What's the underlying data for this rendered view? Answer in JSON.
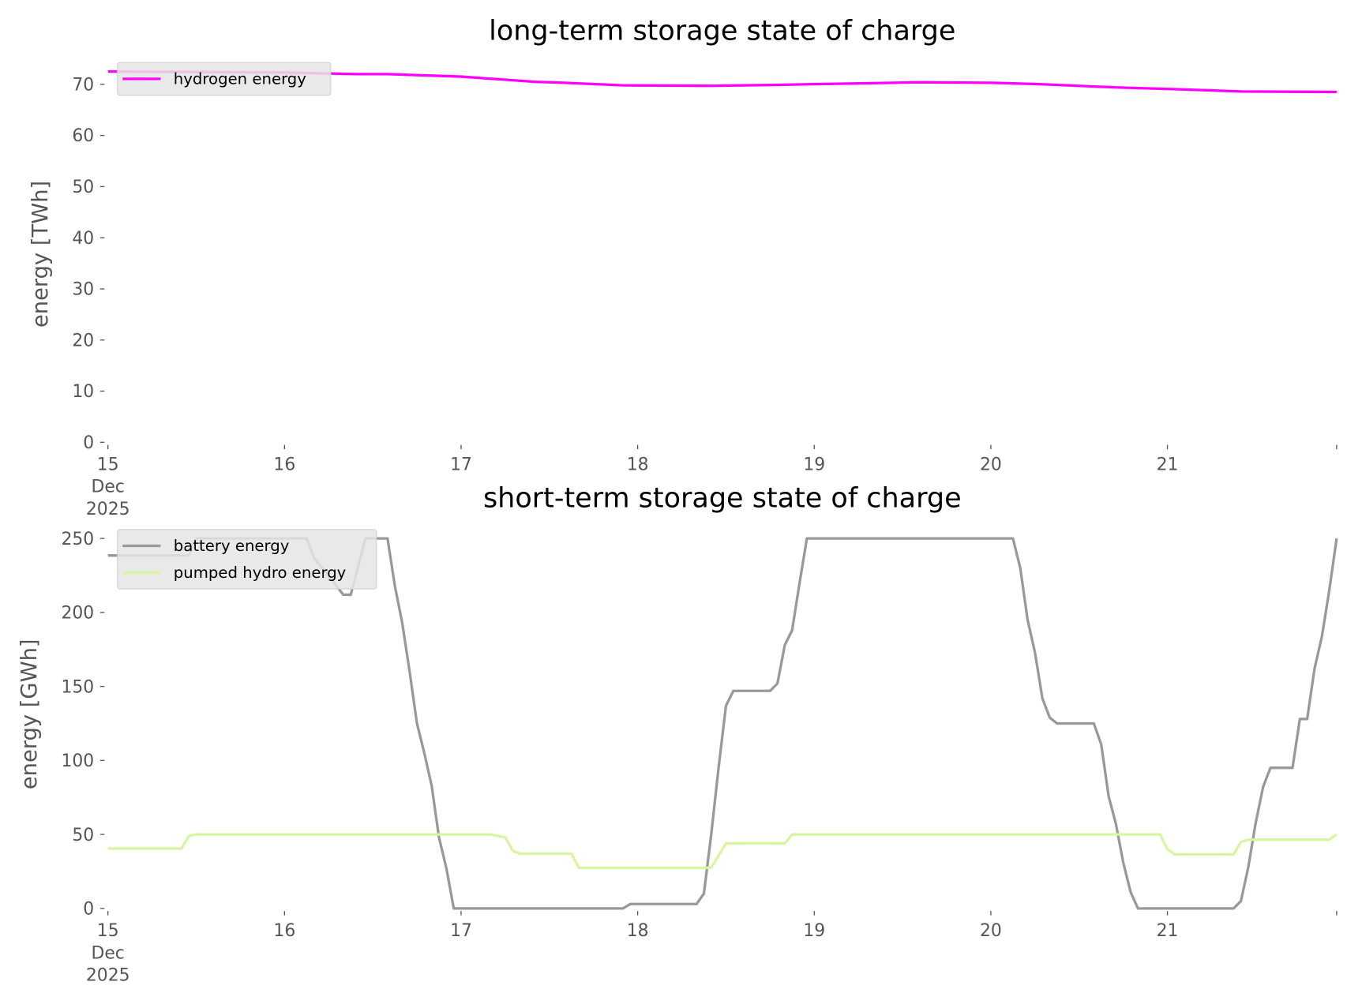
{
  "chart_data": [
    {
      "type": "line",
      "title": "long-term storage state of charge",
      "ylabel": "energy [TWh]",
      "xlabel": "",
      "ylim": [
        0,
        73.6
      ],
      "xlim": [
        "2025-12-15T00:00",
        "2025-12-21T23:00"
      ],
      "yticks": [
        "0",
        "10",
        "20",
        "30",
        "40",
        "50",
        "60",
        "70"
      ],
      "xticks": [
        "15\nDec\n2025",
        "16",
        "17",
        "18",
        "19",
        "20",
        "21"
      ],
      "grid": false,
      "legend": "top-left",
      "series": [
        {
          "name": "hydrogen energy",
          "color": "#ff00ff",
          "points": [
            [
              "2025-12-15T00:00",
              72.5
            ],
            [
              "2025-12-16T00:00",
              72.3
            ],
            [
              "2025-12-16T10:00",
              72.0
            ],
            [
              "2025-12-16T14:00",
              72.0
            ],
            [
              "2025-12-17T00:00",
              71.5
            ],
            [
              "2025-12-17T10:00",
              70.5
            ],
            [
              "2025-12-17T14:00",
              70.3
            ],
            [
              "2025-12-17T22:00",
              69.8
            ],
            [
              "2025-12-18T10:00",
              69.7
            ],
            [
              "2025-12-18T19:00",
              69.9
            ],
            [
              "2025-12-19T07:00",
              70.2
            ],
            [
              "2025-12-19T14:00",
              70.4
            ],
            [
              "2025-12-20T00:00",
              70.3
            ],
            [
              "2025-12-20T07:00",
              70.0
            ],
            [
              "2025-12-20T17:00",
              69.4
            ],
            [
              "2025-12-21T02:00",
              69.0
            ],
            [
              "2025-12-21T10:00",
              68.6
            ],
            [
              "2025-12-21T23:00",
              68.5
            ]
          ]
        }
      ]
    },
    {
      "type": "line",
      "title": "short-term storage state of charge",
      "ylabel": "energy [GWh]",
      "xlabel": "",
      "ylim": [
        0,
        262.5
      ],
      "xlim": [
        "2025-12-15T00:00",
        "2025-12-21T23:00"
      ],
      "yticks": [
        "0",
        "50",
        "100",
        "150",
        "200",
        "250"
      ],
      "xticks": [
        "15\nDec\n2025",
        "16",
        "17",
        "18",
        "19",
        "20",
        "21"
      ],
      "grid": false,
      "legend": "top-left",
      "series": [
        {
          "name": "battery energy",
          "color": "#999999",
          "points": [
            [
              "2025-12-15T00:00",
              238.5
            ],
            [
              "2025-12-15T11:00",
              238.5
            ],
            [
              "2025-12-15T12:00",
              250
            ],
            [
              "2025-12-16T03:00",
              250
            ],
            [
              "2025-12-16T04:00",
              237
            ],
            [
              "2025-12-16T08:00",
              212
            ],
            [
              "2025-12-16T09:00",
              212
            ],
            [
              "2025-12-16T11:00",
              250
            ],
            [
              "2025-12-16T14:00",
              250
            ],
            [
              "2025-12-16T15:00",
              218
            ],
            [
              "2025-12-16T16:00",
              193
            ],
            [
              "2025-12-16T17:00",
              160
            ],
            [
              "2025-12-16T18:00",
              125
            ],
            [
              "2025-12-16T19:00",
              105
            ],
            [
              "2025-12-16T20:00",
              83
            ],
            [
              "2025-12-16T21:00",
              48
            ],
            [
              "2025-12-16T22:00",
              27
            ],
            [
              "2025-12-16T23:00",
              0
            ],
            [
              "2025-12-17T22:00",
              0
            ],
            [
              "2025-12-17T23:00",
              3
            ],
            [
              "2025-12-18T08:00",
              3
            ],
            [
              "2025-12-18T09:00",
              10
            ],
            [
              "2025-12-18T10:00",
              50
            ],
            [
              "2025-12-18T11:00",
              95
            ],
            [
              "2025-12-18T12:00",
              137
            ],
            [
              "2025-12-18T13:00",
              147
            ],
            [
              "2025-12-18T18:00",
              147
            ],
            [
              "2025-12-18T19:00",
              152
            ],
            [
              "2025-12-18T20:00",
              178
            ],
            [
              "2025-12-18T21:00",
              188
            ],
            [
              "2025-12-18T22:00",
              220
            ],
            [
              "2025-12-18T23:00",
              250
            ],
            [
              "2025-12-20T03:00",
              250
            ],
            [
              "2025-12-20T04:00",
              230
            ],
            [
              "2025-12-20T05:00",
              195
            ],
            [
              "2025-12-20T06:00",
              173
            ],
            [
              "2025-12-20T07:00",
              142
            ],
            [
              "2025-12-20T08:00",
              129
            ],
            [
              "2025-12-20T09:00",
              125
            ],
            [
              "2025-12-20T14:00",
              125
            ],
            [
              "2025-12-20T15:00",
              111
            ],
            [
              "2025-12-20T16:00",
              76
            ],
            [
              "2025-12-20T17:00",
              57
            ],
            [
              "2025-12-20T18:00",
              31
            ],
            [
              "2025-12-20T19:00",
              11
            ],
            [
              "2025-12-20T20:00",
              0
            ],
            [
              "2025-12-21T09:00",
              0
            ],
            [
              "2025-12-21T10:00",
              5
            ],
            [
              "2025-12-21T11:00",
              28
            ],
            [
              "2025-12-21T12:00",
              58
            ],
            [
              "2025-12-21T13:00",
              82
            ],
            [
              "2025-12-21T14:00",
              95
            ],
            [
              "2025-12-21T17:00",
              95
            ],
            [
              "2025-12-21T18:00",
              128
            ],
            [
              "2025-12-21T19:00",
              128
            ],
            [
              "2025-12-21T20:00",
              162
            ],
            [
              "2025-12-21T21:00",
              184
            ],
            [
              "2025-12-21T22:00",
              215
            ],
            [
              "2025-12-21T23:00",
              250
            ]
          ]
        },
        {
          "name": "pumped hydro energy",
          "color": "#d8f5a2",
          "points": [
            [
              "2025-12-15T00:00",
              40.5
            ],
            [
              "2025-12-15T10:00",
              40.5
            ],
            [
              "2025-12-15T11:00",
              49
            ],
            [
              "2025-12-15T12:00",
              50
            ],
            [
              "2025-12-17T04:00",
              50
            ],
            [
              "2025-12-17T05:00",
              49
            ],
            [
              "2025-12-17T06:00",
              48
            ],
            [
              "2025-12-17T07:00",
              39
            ],
            [
              "2025-12-17T08:00",
              37
            ],
            [
              "2025-12-17T15:00",
              37
            ],
            [
              "2025-12-17T16:00",
              27.5
            ],
            [
              "2025-12-18T10:00",
              27.5
            ],
            [
              "2025-12-18T12:00",
              44
            ],
            [
              "2025-12-18T20:00",
              44
            ],
            [
              "2025-12-18T21:00",
              50
            ],
            [
              "2025-12-20T23:00",
              50
            ],
            [
              "2025-12-21T00:00",
              40
            ],
            [
              "2025-12-21T01:00",
              36.5
            ],
            [
              "2025-12-21T09:00",
              36.5
            ],
            [
              "2025-12-21T10:00",
              45
            ],
            [
              "2025-12-21T11:00",
              46.5
            ],
            [
              "2025-12-21T22:00",
              46.5
            ],
            [
              "2025-12-21T23:00",
              50
            ]
          ]
        }
      ]
    }
  ]
}
